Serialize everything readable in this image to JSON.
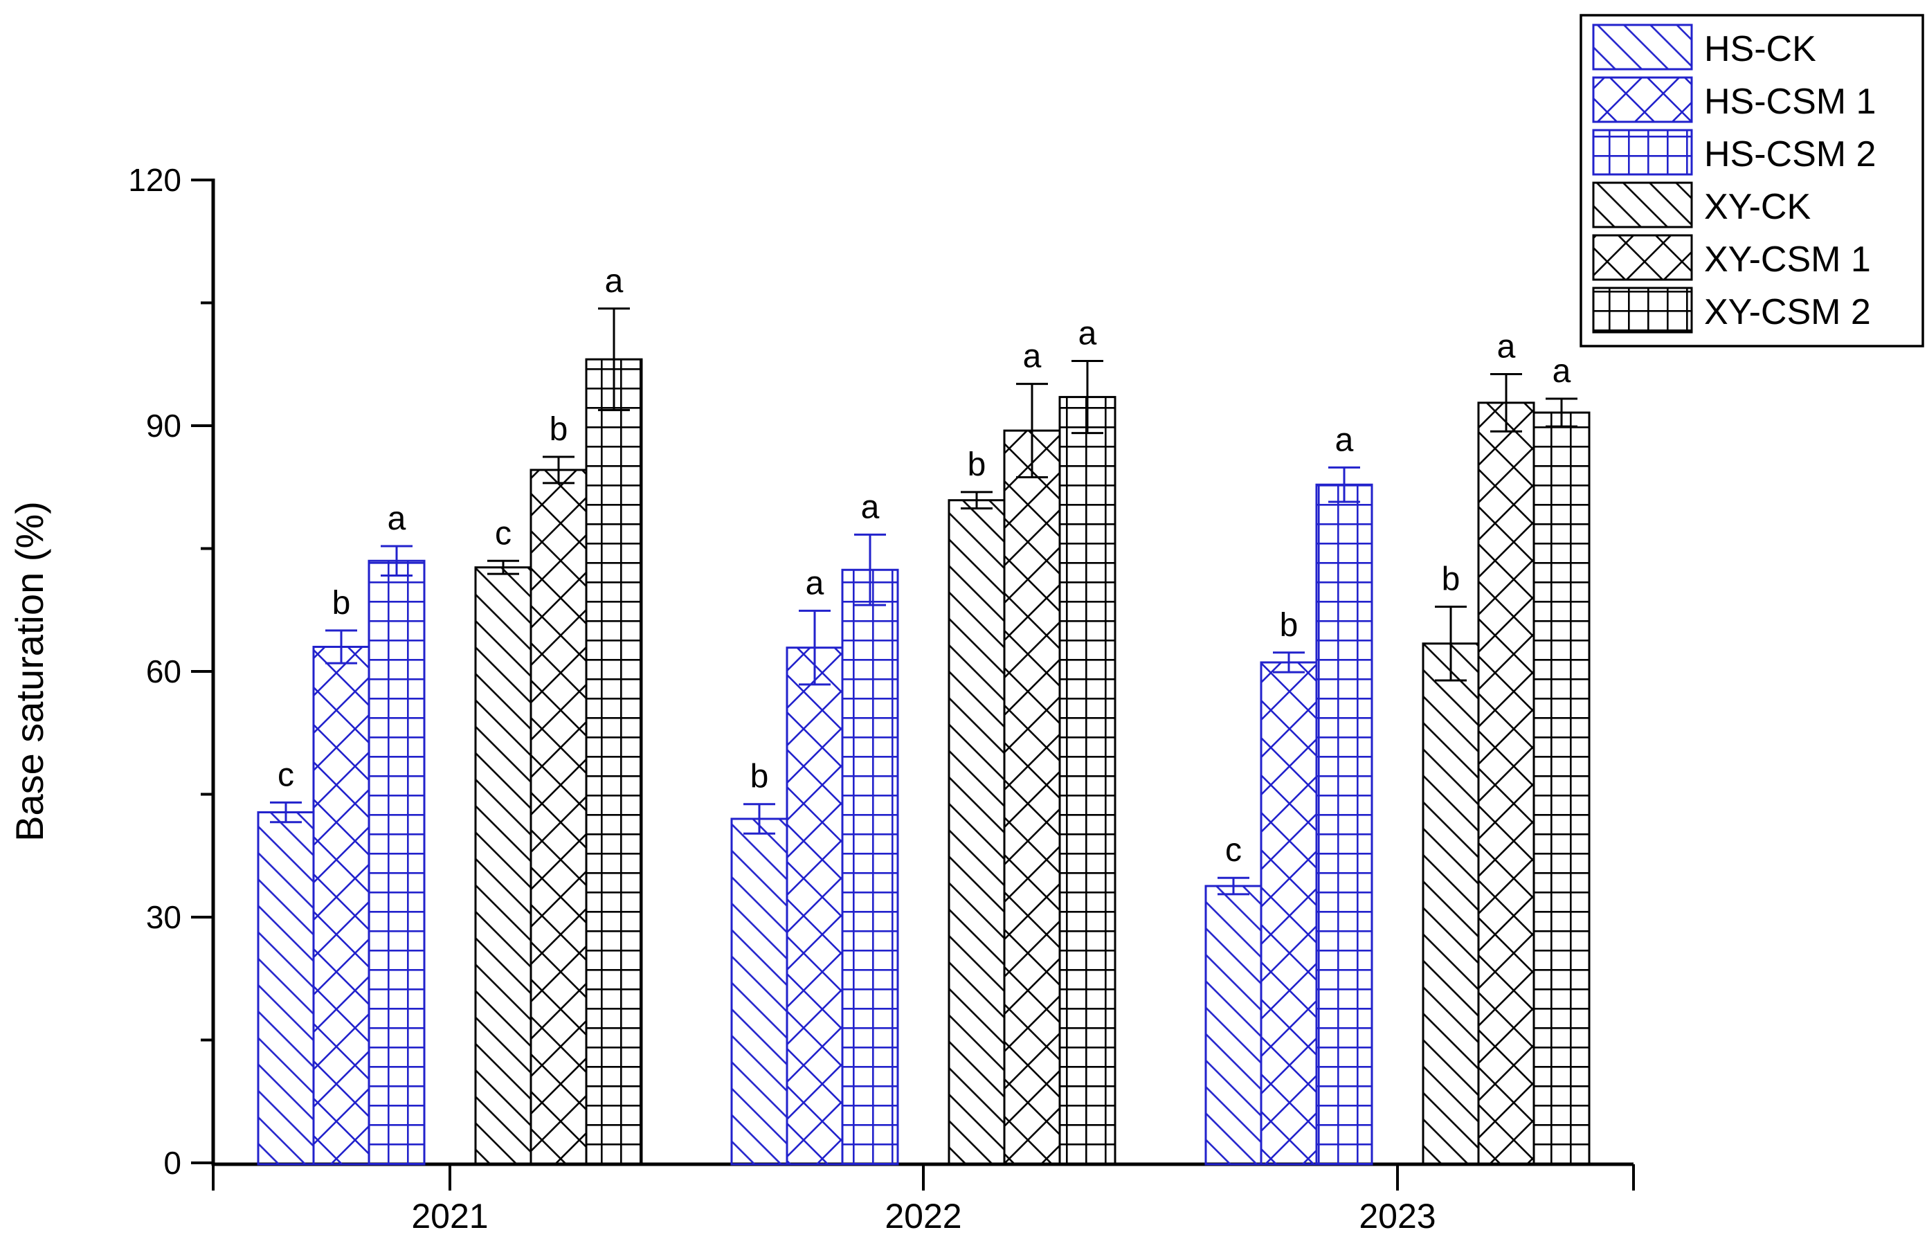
{
  "figure": {
    "background": "#ffffff",
    "axis_color": "#000000",
    "hs_color": "#2222cc",
    "xy_color": "#000000"
  },
  "chart_data": {
    "type": "bar",
    "title": "",
    "xlabel": "",
    "ylabel": "Base saturation (%)",
    "ylim": [
      0,
      120
    ],
    "yticks": [
      0,
      30,
      60,
      90,
      120
    ],
    "minor_yticks": [
      15,
      45,
      75,
      105
    ],
    "categories": [
      "2021",
      "2022",
      "2023"
    ],
    "grid": false,
    "legend_position": "top-right",
    "error_bars": true,
    "series": [
      {
        "name": "HS-CK",
        "color": "#2222cc",
        "pattern": "diagonal",
        "values": [
          42.8,
          42.0,
          33.8
        ],
        "errors": [
          1.2,
          1.8,
          1.0
        ],
        "letters": [
          "c",
          "b",
          "c"
        ]
      },
      {
        "name": "HS-CSM 1",
        "color": "#2222cc",
        "pattern": "crosshatch",
        "values": [
          63.0,
          62.9,
          61.1
        ],
        "errors": [
          2.0,
          4.5,
          1.2
        ],
        "letters": [
          "b",
          "a",
          "b"
        ]
      },
      {
        "name": "HS-CSM 2",
        "color": "#2222cc",
        "pattern": "grid",
        "values": [
          73.5,
          72.4,
          82.8
        ],
        "errors": [
          1.8,
          4.3,
          2.1
        ],
        "letters": [
          "a",
          "a",
          "a"
        ]
      },
      {
        "name": "XY-CK",
        "color": "#000000",
        "pattern": "diagonal",
        "values": [
          72.7,
          80.9,
          63.4
        ],
        "errors": [
          0.8,
          1.0,
          4.5
        ],
        "letters": [
          "c",
          "b",
          "b"
        ]
      },
      {
        "name": "XY-CSM 1",
        "color": "#000000",
        "pattern": "crosshatch",
        "values": [
          84.6,
          89.4,
          92.8
        ],
        "errors": [
          1.6,
          5.7,
          3.5
        ],
        "letters": [
          "b",
          "a",
          "a"
        ]
      },
      {
        "name": "XY-CSM 2",
        "color": "#000000",
        "pattern": "grid",
        "values": [
          98.1,
          93.5,
          91.6
        ],
        "errors": [
          6.2,
          4.4,
          1.7
        ],
        "letters": [
          "a",
          "a",
          "a"
        ]
      }
    ]
  }
}
